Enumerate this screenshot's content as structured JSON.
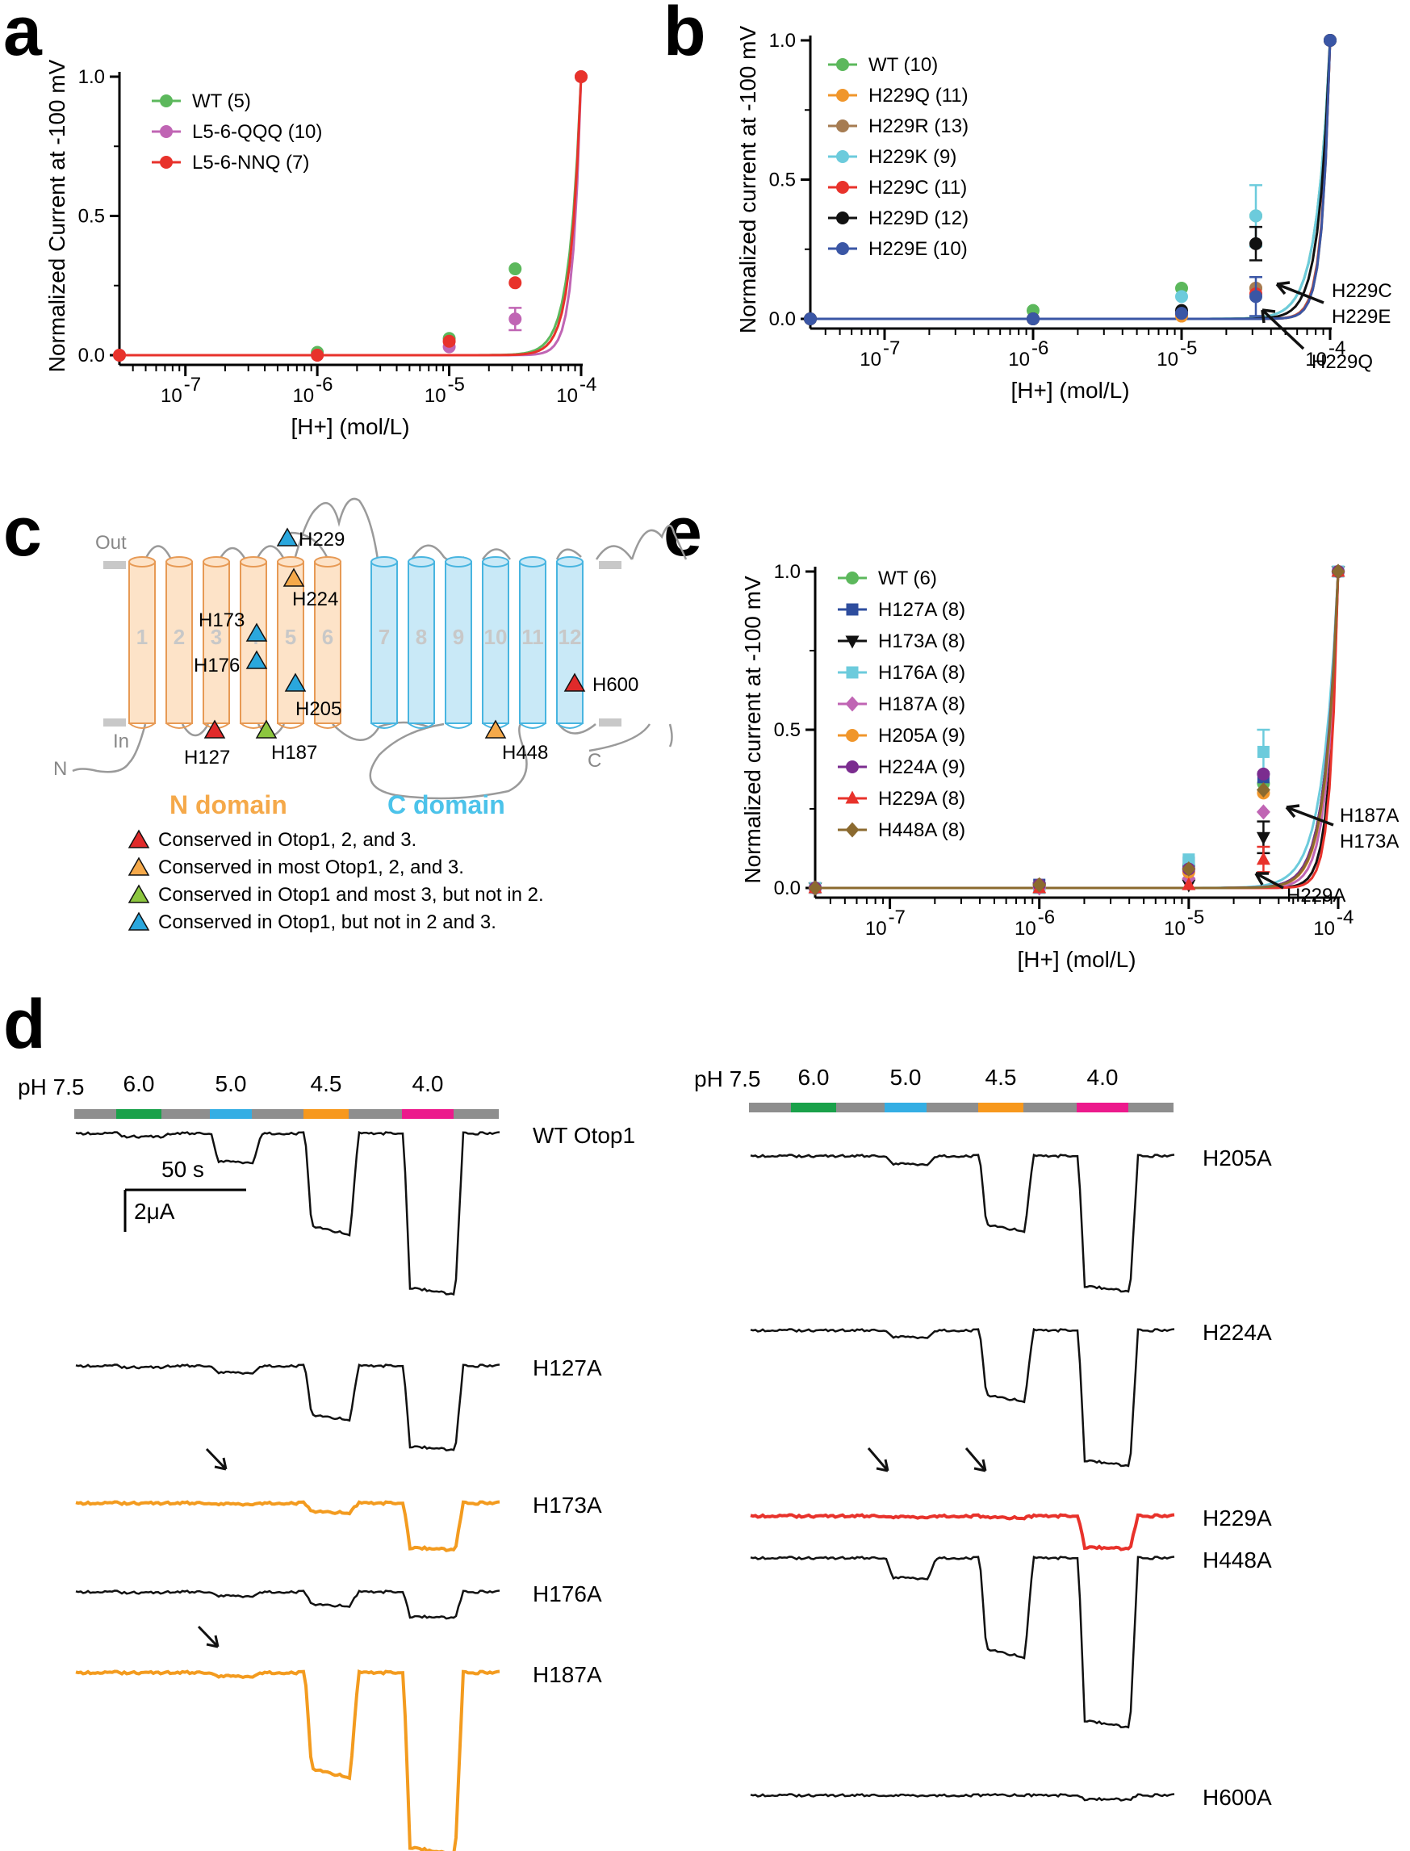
{
  "panels": {
    "a": {
      "letter": "a"
    },
    "b": {
      "letter": "b"
    },
    "c": {
      "letter": "c"
    },
    "d": {
      "letter": "d"
    },
    "e": {
      "letter": "e"
    }
  },
  "chart_data": [
    {
      "id": "a",
      "type": "line",
      "title": "",
      "xlabel": "[H+] (mol/L)",
      "ylabel": "Normalized Current at -100 mV",
      "xscale": "log",
      "xlim_log10": [
        -7.5,
        -4
      ],
      "ylim": [
        0,
        1
      ],
      "yticks": [
        "0.0",
        "0.5",
        "1.0"
      ],
      "xticks_exponent": [
        "-7",
        "-6",
        "-5",
        "-4"
      ],
      "legend_position": "top-left",
      "series": [
        {
          "name": "WT (5)",
          "color": "#5cb85c",
          "marker": "circle",
          "x_log10": [
            -7.5,
            -6,
            -5,
            -4.5,
            -4
          ],
          "values": [
            0,
            0.01,
            0.06,
            0.31,
            1.0
          ],
          "fit_k": 5.0
        },
        {
          "name": "L5-6-QQQ (10)",
          "color": "#c065b4",
          "marker": "circle",
          "x_log10": [
            -7.5,
            -6,
            -5,
            -4.5,
            -4
          ],
          "values": [
            0,
            0.0,
            0.03,
            0.13,
            1.0
          ],
          "fit_k": 7.2,
          "err": [
            0,
            0,
            0,
            0.04,
            0
          ]
        },
        {
          "name": "L5-6-NNQ (7)",
          "color": "#e8322b",
          "marker": "circle",
          "x_log10": [
            -7.5,
            -6,
            -5,
            -4.5,
            -4
          ],
          "values": [
            0,
            0.0,
            0.05,
            0.26,
            1.0
          ],
          "fit_k": 5.6
        }
      ]
    },
    {
      "id": "b",
      "type": "line",
      "title": "",
      "xlabel": "[H+] (mol/L)",
      "ylabel": "Normalized current at -100 mV",
      "xscale": "log",
      "xlim_log10": [
        -7.5,
        -4
      ],
      "ylim": [
        0,
        1
      ],
      "yticks": [
        "0.0",
        "0.5",
        "1.0"
      ],
      "xticks_exponent": [
        "-7",
        "-6",
        "-5",
        "-4"
      ],
      "legend_position": "top-left",
      "annotations": [
        {
          "text": "H229C",
          "line2": "H229E"
        },
        {
          "text": "H229Q"
        }
      ],
      "series": [
        {
          "name": "WT (10)",
          "color": "#5cb85c",
          "marker": "circle",
          "x_log10": [
            -7.5,
            -6,
            -5,
            -4.5,
            -4
          ],
          "values": [
            0,
            0.03,
            0.11,
            0.37,
            1.0
          ],
          "fit_k": 4.8
        },
        {
          "name": "H229Q (11)",
          "color": "#f0962b",
          "marker": "circle",
          "x_log10": [
            -7.5,
            -6,
            -5,
            -4.5,
            -4
          ],
          "values": [
            0,
            0.0,
            0.01,
            0.11,
            1.0
          ],
          "fit_k": 8.4
        },
        {
          "name": "H229R (13)",
          "color": "#a67c52",
          "marker": "circle",
          "x_log10": [
            -7.5,
            -6,
            -5,
            -4.5,
            -4
          ],
          "values": [
            0,
            0.0,
            0.02,
            0.11,
            1.0
          ],
          "fit_k": 8.0
        },
        {
          "name": "H229K (9)",
          "color": "#6ccbdc",
          "marker": "circle",
          "x_log10": [
            -7.5,
            -6,
            -5,
            -4.5,
            -4
          ],
          "values": [
            0,
            0.0,
            0.08,
            0.37,
            1.0
          ],
          "fit_k": 4.8,
          "err": [
            0,
            0,
            0,
            0.11,
            0
          ]
        },
        {
          "name": "H229C (11)",
          "color": "#e8322b",
          "marker": "circle",
          "x_log10": [
            -7.5,
            -6,
            -5,
            -4.5,
            -4
          ],
          "values": [
            0,
            0.0,
            0.02,
            0.09,
            1.0
          ],
          "fit_k": 8.2
        },
        {
          "name": "H229D (12)",
          "color": "#111111",
          "marker": "circle",
          "x_log10": [
            -7.5,
            -6,
            -5,
            -4.5,
            -4
          ],
          "values": [
            0,
            0.0,
            0.03,
            0.27,
            1.0
          ],
          "fit_k": 5.8,
          "err": [
            0,
            0,
            0,
            0.06,
            0
          ]
        },
        {
          "name": "H229E (10)",
          "color": "#3a56a5",
          "marker": "circle",
          "x_log10": [
            -7.5,
            -6,
            -5,
            -4.5,
            -4
          ],
          "values": [
            0,
            0.0,
            0.02,
            0.08,
            1.0
          ],
          "fit_k": 8.4,
          "err": [
            0,
            0,
            0,
            0.07,
            0
          ]
        }
      ]
    },
    {
      "id": "e",
      "type": "line",
      "title": "",
      "xlabel": "[H+] (mol/L)",
      "ylabel": "Normalized current at -100 mV",
      "xscale": "log",
      "xlim_log10": [
        -7.5,
        -4
      ],
      "ylim": [
        0,
        1
      ],
      "yticks": [
        "0.0",
        "0.5",
        "1.0"
      ],
      "xticks_exponent": [
        "-7",
        "-6",
        "-5",
        "-4"
      ],
      "legend_position": "top-left",
      "annotations": [
        {
          "text": "H187A",
          "line2": "H173A"
        },
        {
          "text": "H229A"
        }
      ],
      "series": [
        {
          "name": "WT (6)",
          "color": "#5cb85c",
          "marker": "circle",
          "x_log10": [
            -7.5,
            -6,
            -5,
            -4.5,
            -4
          ],
          "values": [
            0,
            0.01,
            0.07,
            0.33,
            1.0
          ],
          "fit_k": 5.0
        },
        {
          "name": "H127A (8)",
          "color": "#2e4d9e",
          "marker": "square",
          "x_log10": [
            -7.5,
            -6,
            -5,
            -4.5,
            -4
          ],
          "values": [
            0,
            0.01,
            0.08,
            0.35,
            1.0
          ],
          "fit_k": 5.0
        },
        {
          "name": "H173A (8)",
          "color": "#111111",
          "marker": "triangle-down",
          "x_log10": [
            -7.5,
            -6,
            -5,
            -4.5,
            -4
          ],
          "values": [
            0,
            0.0,
            0.01,
            0.16,
            1.0
          ],
          "fit_k": 7.5,
          "err": [
            0,
            0,
            0,
            0.05,
            0
          ]
        },
        {
          "name": "H176A (8)",
          "color": "#6ccbdc",
          "marker": "square",
          "x_log10": [
            -7.5,
            -6,
            -5,
            -4.5,
            -4
          ],
          "values": [
            0,
            0.0,
            0.09,
            0.43,
            1.0
          ],
          "fit_k": 4.2,
          "err": [
            0,
            0,
            0,
            0.07,
            0
          ]
        },
        {
          "name": "H187A (8)",
          "color": "#c065b4",
          "marker": "diamond",
          "x_log10": [
            -7.5,
            -6,
            -5,
            -4.5,
            -4
          ],
          "values": [
            0,
            0.0,
            0.03,
            0.24,
            1.0
          ],
          "fit_k": 6.0
        },
        {
          "name": "H205A (9)",
          "color": "#f0962b",
          "marker": "circle",
          "x_log10": [
            -7.5,
            -6,
            -5,
            -4.5,
            -4
          ],
          "values": [
            0,
            0.01,
            0.05,
            0.3,
            1.0
          ],
          "fit_k": 5.3
        },
        {
          "name": "H224A (9)",
          "color": "#7b2c8f",
          "marker": "circle",
          "x_log10": [
            -7.5,
            -6,
            -5,
            -4.5,
            -4
          ],
          "values": [
            0,
            0.01,
            0.06,
            0.36,
            1.0
          ],
          "fit_k": 5.0
        },
        {
          "name": "H229A (8)",
          "color": "#e8322b",
          "marker": "triangle-up",
          "x_log10": [
            -7.5,
            -6,
            -5,
            -4.5,
            -4
          ],
          "values": [
            0,
            0.0,
            0.01,
            0.09,
            1.0
          ],
          "fit_k": 8.6,
          "err": [
            0,
            0,
            0,
            0.04,
            0
          ]
        },
        {
          "name": "H448A (8)",
          "color": "#8b6a2f",
          "marker": "diamond",
          "x_log10": [
            -7.5,
            -6,
            -5,
            -4.5,
            -4
          ],
          "values": [
            0,
            0.01,
            0.06,
            0.31,
            1.0
          ],
          "fit_k": 5.2
        }
      ]
    }
  ],
  "topology": {
    "out_label": "Out",
    "in_label": "In",
    "n_term": "N",
    "c_term": "C",
    "n_domain": "N domain",
    "c_domain": "C domain",
    "n_domain_color": "#f5a94a",
    "c_domain_color": "#4cc3ea",
    "helices": [
      "1",
      "2",
      "3",
      "4",
      "5",
      "6",
      "7",
      "8",
      "9",
      "10",
      "11",
      "12"
    ],
    "residues": [
      {
        "label": "H229",
        "class": "blue"
      },
      {
        "label": "H224",
        "class": "orange"
      },
      {
        "label": "H173",
        "class": "blue"
      },
      {
        "label": "H176",
        "class": "blue"
      },
      {
        "label": "H205",
        "class": "blue"
      },
      {
        "label": "H600",
        "class": "red"
      },
      {
        "label": "H127",
        "class": "red"
      },
      {
        "label": "H187",
        "class": "green"
      },
      {
        "label": "H448",
        "class": "orange"
      }
    ],
    "legend": [
      {
        "class": "red",
        "text": "Conserved in Otop1, 2, and 3."
      },
      {
        "class": "orange",
        "text": "Conserved in most Otop1, 2, and 3."
      },
      {
        "class": "green",
        "text": "Conserved in Otop1 and most 3, but not in 2."
      },
      {
        "class": "blue",
        "text": "Conserved in Otop1, but not in 2 and 3."
      }
    ],
    "colors": {
      "red": "#e02a2a",
      "orange": "#f5a94a",
      "green": "#8cc63f",
      "blue": "#2aa7dd"
    }
  },
  "traces": {
    "ph_label": "pH 7.5",
    "ph_steps": [
      "6.0",
      "5.0",
      "4.5",
      "4.0"
    ],
    "ph_colors": [
      "#1aa14a",
      "#34aee4",
      "#f7981d",
      "#ec1a8c"
    ],
    "scale_time": "50 s",
    "scale_current": "2μA",
    "left": [
      {
        "label": "WT Otop1",
        "color": "#111111"
      },
      {
        "label": "H127A",
        "color": "#111111"
      },
      {
        "label": "H173A",
        "color": "#f39b1f"
      },
      {
        "label": "H176A",
        "color": "#111111"
      },
      {
        "label": "H187A",
        "color": "#f39b1f"
      }
    ],
    "right": [
      {
        "label": "H205A",
        "color": "#111111"
      },
      {
        "label": "H224A",
        "color": "#111111"
      },
      {
        "label": "H229A",
        "color": "#e8322b"
      },
      {
        "label": "H448A",
        "color": "#111111"
      },
      {
        "label": "H600A",
        "color": "#111111"
      }
    ],
    "amplitudes": {
      "WT Otop1": [
        0.02,
        0.18,
        0.6,
        1.0
      ],
      "H127A": [
        0.01,
        0.05,
        0.38,
        0.62
      ],
      "H173A": [
        0.0,
        0.01,
        0.11,
        0.55
      ],
      "H176A": [
        0.01,
        0.06,
        0.2,
        0.38
      ],
      "H187A": [
        0.0,
        0.02,
        0.55,
        1.0
      ],
      "H205A": [
        0.0,
        0.06,
        0.53,
        1.0
      ],
      "H224A": [
        0.0,
        0.05,
        0.5,
        1.0
      ],
      "H229A": [
        0.0,
        0.01,
        0.02,
        0.35
      ],
      "H448A": [
        0.0,
        0.12,
        0.56,
        1.0
      ],
      "H600A": [
        0.0,
        0.0,
        0.0,
        0.03
      ]
    }
  }
}
